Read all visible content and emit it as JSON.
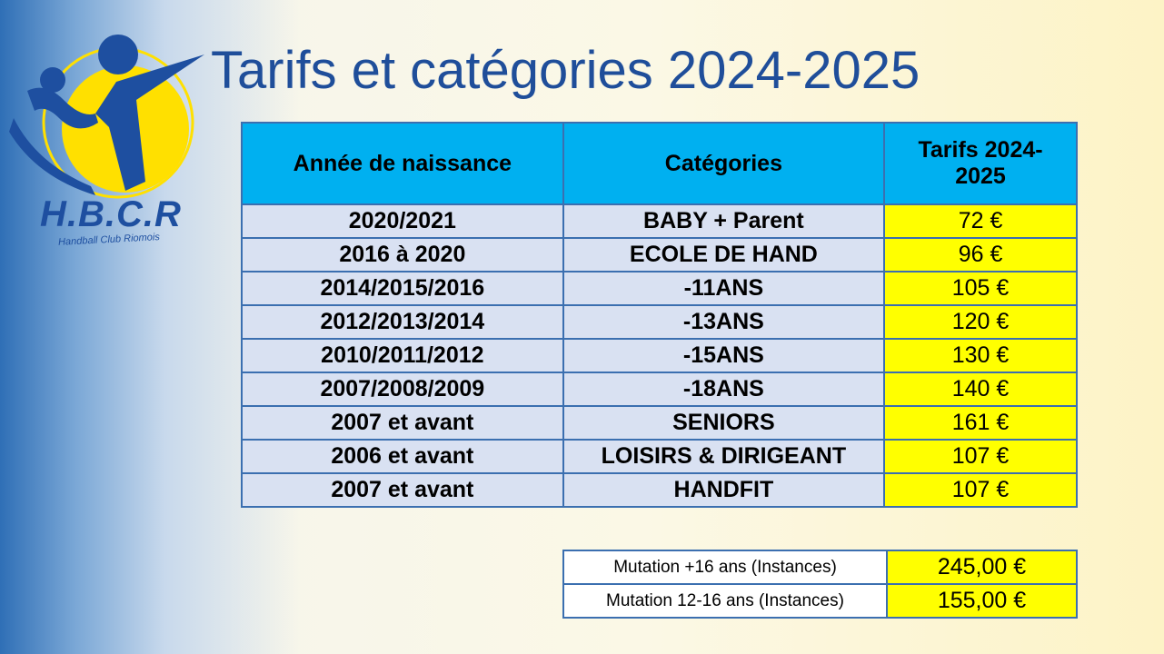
{
  "title": "Tarifs et catégories 2024-2025",
  "logo": {
    "letters": "H.B.C.R",
    "subtitle": "Handball Club Riomois",
    "colors": {
      "blue": "#1e4fa0",
      "yellow": "#ffe000"
    }
  },
  "table": {
    "headers": {
      "year": "Année de naissance",
      "category": "Catégories",
      "price_line1": "Tarifs 2024-",
      "price_line2": "2025"
    },
    "rows": [
      {
        "year": "2020/2021",
        "category": "BABY + Parent",
        "price": "72 €"
      },
      {
        "year": "2016 à 2020",
        "category": "ECOLE DE HAND",
        "price": "96 €"
      },
      {
        "year": "2014/2015/2016",
        "category": "-11ANS",
        "price": "105 €"
      },
      {
        "year": "2012/2013/2014",
        "category": "-13ANS",
        "price": "120 €"
      },
      {
        "year": "2010/2011/2012",
        "category": "-15ANS",
        "price": "130 €"
      },
      {
        "year": "2007/2008/2009",
        "category": "-18ANS",
        "price": "140 €"
      },
      {
        "year": "2007 et avant",
        "category": "SENIORS",
        "price": "161 €"
      },
      {
        "year": "2006 et avant",
        "category": "LOISIRS & DIRIGEANT",
        "price": "107 €"
      },
      {
        "year": "2007 et avant",
        "category": "HANDFIT",
        "price": "107 €"
      }
    ]
  },
  "mutations": [
    {
      "label": "Mutation +16 ans (Instances)",
      "price": "245,00 €"
    },
    {
      "label": "Mutation 12-16 ans (Instances)",
      "price": "155,00 €"
    }
  ],
  "colors": {
    "header_bg": "#00b0f0",
    "row_bg": "#d9e1f2",
    "price_bg": "#ffff00",
    "border": "#3b6fb0",
    "title": "#1f4e9a"
  }
}
